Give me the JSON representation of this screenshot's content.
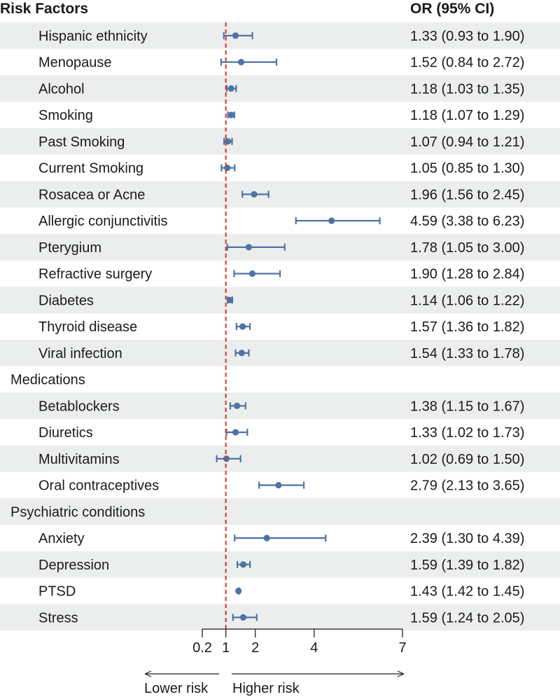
{
  "header": {
    "left": "Risk Factors",
    "right": "OR (95% CI)"
  },
  "colors": {
    "band": "#ebeeed",
    "marker": "#4e73a6",
    "refline": "#d7352b",
    "axis": "#222222"
  },
  "chart_data": {
    "type": "forest",
    "xticks": [
      "0.2",
      "1",
      "2",
      "4",
      "7"
    ],
    "xlim": [
      0.2,
      7
    ],
    "reference_line": 1,
    "direction_labels": {
      "left": "Lower risk",
      "right": "Higher risk"
    },
    "rows": [
      {
        "kind": "item",
        "label": "Hispanic ethnicity",
        "or": 1.33,
        "lo": 0.93,
        "hi": 1.9,
        "text": "1.33 (0.93 to 1.90)"
      },
      {
        "kind": "item",
        "label": "Menopause",
        "or": 1.52,
        "lo": 0.84,
        "hi": 2.72,
        "text": "1.52 (0.84 to 2.72)"
      },
      {
        "kind": "item",
        "label": "Alcohol",
        "or": 1.18,
        "lo": 1.03,
        "hi": 1.35,
        "text": "1.18 (1.03 to 1.35)"
      },
      {
        "kind": "item",
        "label": "Smoking",
        "or": 1.18,
        "lo": 1.07,
        "hi": 1.29,
        "text": "1.18 (1.07 to 1.29)"
      },
      {
        "kind": "item",
        "label": "Past Smoking",
        "or": 1.07,
        "lo": 0.94,
        "hi": 1.21,
        "text": "1.07 (0.94 to 1.21)"
      },
      {
        "kind": "item",
        "label": "Current Smoking",
        "or": 1.05,
        "lo": 0.85,
        "hi": 1.3,
        "text": "1.05 (0.85 to 1.30)"
      },
      {
        "kind": "item",
        "label": "Rosacea or Acne",
        "or": 1.96,
        "lo": 1.56,
        "hi": 2.45,
        "text": "1.96 (1.56 to 2.45)"
      },
      {
        "kind": "item",
        "label": "Allergic conjunctivitis",
        "or": 4.59,
        "lo": 3.38,
        "hi": 6.23,
        "text": "4.59 (3.38 to 6.23)"
      },
      {
        "kind": "item",
        "label": "Pterygium",
        "or": 1.78,
        "lo": 1.05,
        "hi": 3.0,
        "text": "1.78 (1.05 to 3.00)"
      },
      {
        "kind": "item",
        "label": "Refractive surgery",
        "or": 1.9,
        "lo": 1.28,
        "hi": 2.84,
        "text": "1.90 (1.28 to 2.84)"
      },
      {
        "kind": "item",
        "label": "Diabetes",
        "or": 1.14,
        "lo": 1.06,
        "hi": 1.22,
        "text": "1.14 (1.06 to 1.22)"
      },
      {
        "kind": "item",
        "label": "Thyroid disease",
        "or": 1.57,
        "lo": 1.36,
        "hi": 1.82,
        "text": "1.57 (1.36 to 1.82)"
      },
      {
        "kind": "item",
        "label": "Viral infection",
        "or": 1.54,
        "lo": 1.33,
        "hi": 1.78,
        "text": "1.54 (1.33 to 1.78)"
      },
      {
        "kind": "group",
        "label": "Medications"
      },
      {
        "kind": "item",
        "label": "Betablockers",
        "or": 1.38,
        "lo": 1.15,
        "hi": 1.67,
        "text": "1.38 (1.15 to 1.67)"
      },
      {
        "kind": "item",
        "label": "Diuretics",
        "or": 1.33,
        "lo": 1.02,
        "hi": 1.73,
        "text": "1.33 (1.02 to 1.73)"
      },
      {
        "kind": "item",
        "label": "Multivitamins",
        "or": 1.02,
        "lo": 0.69,
        "hi": 1.5,
        "text": "1.02 (0.69 to 1.50)"
      },
      {
        "kind": "item",
        "label": "Oral contraceptives",
        "or": 2.79,
        "lo": 2.13,
        "hi": 3.65,
        "text": "2.79 (2.13 to 3.65)"
      },
      {
        "kind": "group",
        "label": "Psychiatric conditions"
      },
      {
        "kind": "item",
        "label": "Anxiety",
        "or": 2.39,
        "lo": 1.3,
        "hi": 4.39,
        "text": "2.39 (1.30 to 4.39)"
      },
      {
        "kind": "item",
        "label": "Depression",
        "or": 1.59,
        "lo": 1.39,
        "hi": 1.82,
        "text": "1.59 (1.39 to 1.82)"
      },
      {
        "kind": "item",
        "label": "PTSD",
        "or": 1.43,
        "lo": 1.42,
        "hi": 1.45,
        "text": "1.43 (1.42 to 1.45)"
      },
      {
        "kind": "item",
        "label": "Stress",
        "or": 1.59,
        "lo": 1.24,
        "hi": 2.05,
        "text": "1.59 (1.24 to 2.05)"
      }
    ]
  }
}
